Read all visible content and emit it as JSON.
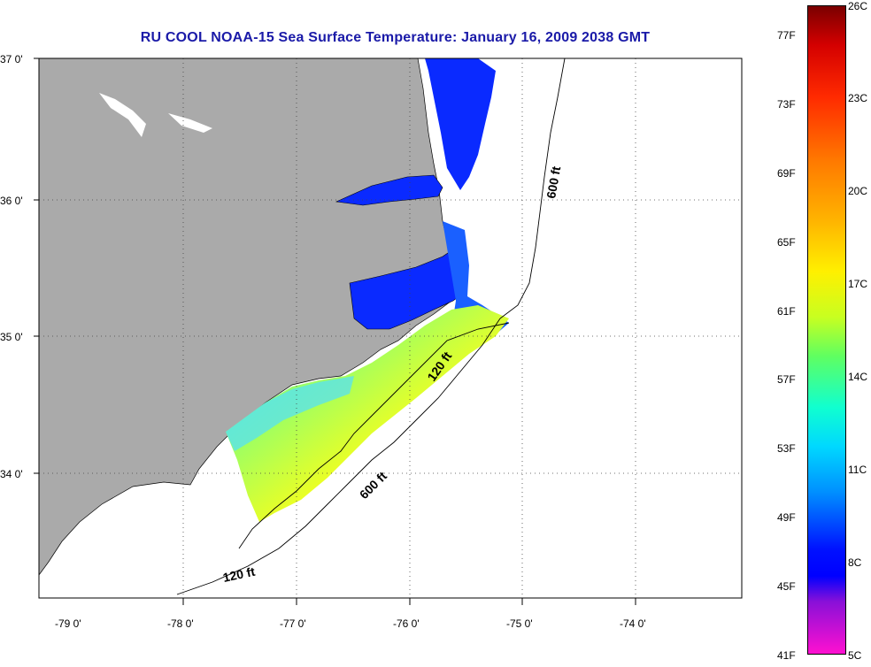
{
  "title": "RU COOL  NOAA-15  Sea Surface Temperature:  January 16, 2009 2038 GMT",
  "map": {
    "lat_labels": [
      "37 0'",
      "36 0'",
      "35 0'",
      "34 0'"
    ],
    "lon_labels": [
      "-79 0'",
      "-78 0'",
      "-77 0'",
      "-76 0'",
      "-75 0'",
      "-74 0'"
    ],
    "contour_labels": [
      "600 ft",
      "120 ft",
      "600 ft",
      "120 ft"
    ],
    "colors": {
      "land": "#aaaaaa",
      "water_nodata": "#ffffff"
    }
  },
  "colorbar": {
    "fahrenheit": [
      "77F",
      "73F",
      "69F",
      "65F",
      "61F",
      "57F",
      "53F",
      "49F",
      "45F",
      "41F"
    ],
    "celsius": [
      "26C",
      "23C",
      "20C",
      "17C",
      "14C",
      "11C",
      "8C",
      "5C"
    ]
  }
}
